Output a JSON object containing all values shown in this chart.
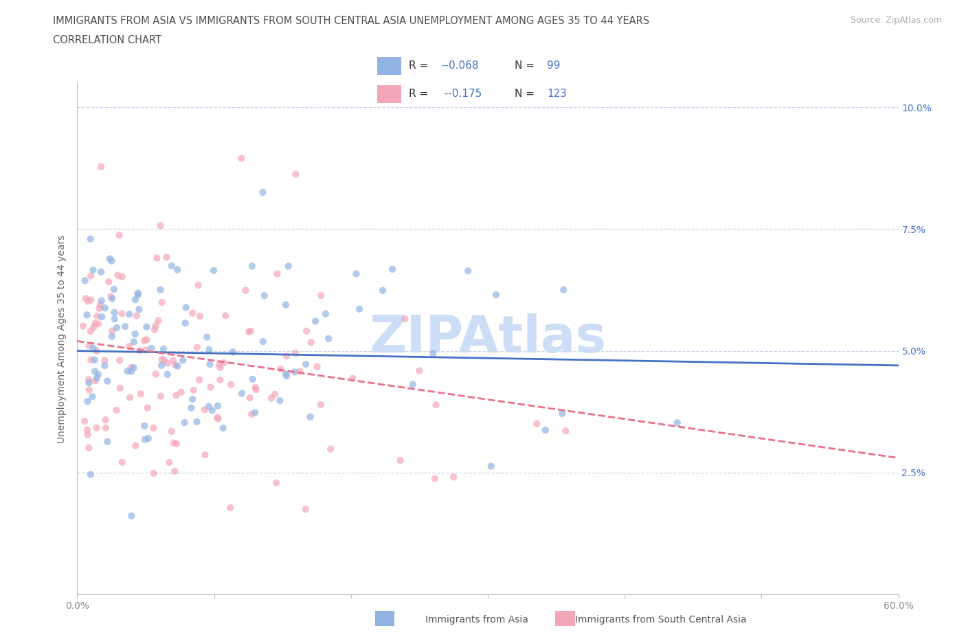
{
  "title_line1": "IMMIGRANTS FROM ASIA VS IMMIGRANTS FROM SOUTH CENTRAL ASIA UNEMPLOYMENT AMONG AGES 35 TO 44 YEARS",
  "title_line2": "CORRELATION CHART",
  "source_text": "Source: ZipAtlas.com",
  "ylabel": "Unemployment Among Ages 35 to 44 years",
  "xlim": [
    0.0,
    0.6
  ],
  "ylim": [
    0.0,
    0.105
  ],
  "xticks": [
    0.0,
    0.1,
    0.2,
    0.3,
    0.4,
    0.5,
    0.6
  ],
  "xticklabels": [
    "0.0%",
    "",
    "",
    "",
    "",
    "",
    "60.0%"
  ],
  "yticks": [
    0.0,
    0.025,
    0.05,
    0.075,
    0.1
  ],
  "yticklabels_right": [
    "",
    "2.5%",
    "5.0%",
    "7.5%",
    "10.0%"
  ],
  "color_asia": "#92b4e3",
  "color_sca": "#f4a7b9",
  "trendline_color_asia": "#4472c4",
  "trendline_color_sca": "#e8708a",
  "watermark_color": "#ccddf5",
  "grid_color": "#c8d4e8",
  "background_color": "#ffffff",
  "title_color": "#505050",
  "tick_color": "#888888",
  "right_tick_color": "#4472c4",
  "scatter_alpha": 0.7,
  "scatter_size": 55,
  "R1": -0.068,
  "N1": 99,
  "R2": -0.175,
  "N2": 123,
  "legend_r1_val": "-0.068",
  "legend_n1_val": "99",
  "legend_r2_val": "-0.175",
  "legend_n2_val": "123"
}
